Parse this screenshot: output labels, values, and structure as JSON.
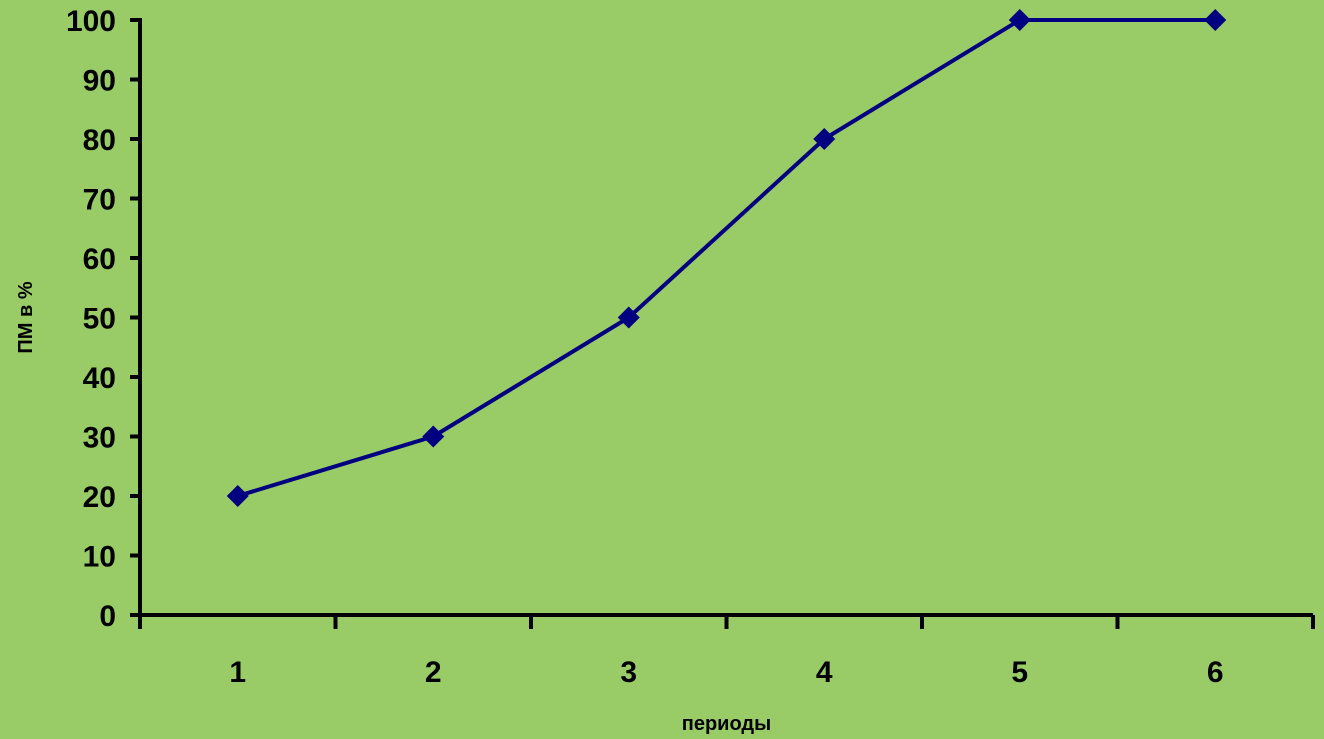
{
  "colors": {
    "background": "#99cc66",
    "series_line": "#000080",
    "axis": "#000000"
  },
  "chart_data": {
    "type": "line",
    "title": "",
    "xlabel": "периоды",
    "ylabel": "ПМ в %",
    "categories": [
      "1",
      "2",
      "3",
      "4",
      "5",
      "6"
    ],
    "series": [
      {
        "values": [
          20,
          30,
          50,
          80,
          100,
          100
        ],
        "marker": "diamond"
      }
    ],
    "ylim": [
      0,
      100
    ],
    "yticks": [
      0,
      10,
      20,
      30,
      40,
      50,
      60,
      70,
      80,
      90,
      100
    ],
    "grid": false,
    "legend": "none"
  }
}
